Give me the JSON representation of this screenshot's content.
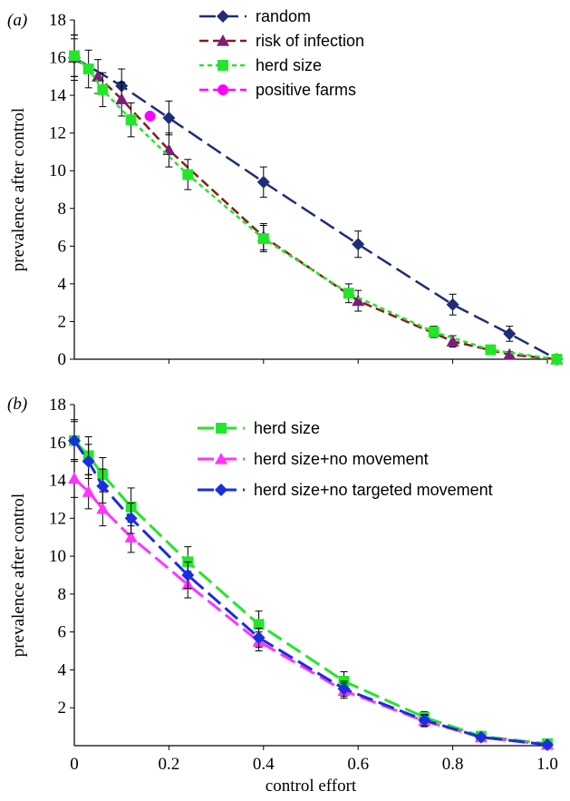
{
  "chart_data": [
    {
      "type": "line",
      "panel_label": "(a)",
      "ylabel": "prevalence after control",
      "xlabel": "",
      "xlim": [
        0,
        1.0
      ],
      "ylim": [
        0,
        18
      ],
      "yticks": [
        0,
        2,
        4,
        6,
        8,
        10,
        12,
        14,
        16,
        18
      ],
      "xticks": [],
      "legend_position": "top-center",
      "series": [
        {
          "name": "random",
          "color": "#1f2d78",
          "marker": "diamond",
          "dash": "long",
          "x": [
            0,
            0.1,
            0.2,
            0.4,
            0.6,
            0.8,
            0.92,
            1.02
          ],
          "y": [
            16,
            14.5,
            12.8,
            9.4,
            6.1,
            2.9,
            1.35,
            0
          ],
          "err": [
            1.2,
            0.9,
            0.9,
            0.8,
            0.7,
            0.55,
            0.4,
            0
          ]
        },
        {
          "name": "risk of infection",
          "color": "#8a1a1a",
          "marker_color": "#7b1d7b",
          "marker": "triangle",
          "dash": "medium",
          "x": [
            0,
            0.05,
            0.1,
            0.2,
            0.4,
            0.6,
            0.8,
            0.92,
            1.02
          ],
          "y": [
            16,
            15.0,
            13.8,
            11.1,
            6.5,
            3.1,
            0.95,
            0.25,
            0
          ],
          "err": [
            1.0,
            0.9,
            0.9,
            0.9,
            0.7,
            0.55,
            0.3,
            0.15,
            0
          ]
        },
        {
          "name": "herd size",
          "color": "#22e62a",
          "marker": "square",
          "dash": "short",
          "x": [
            0,
            0.03,
            0.06,
            0.12,
            0.24,
            0.4,
            0.58,
            0.76,
            0.88,
            1.02
          ],
          "y": [
            16.1,
            15.4,
            14.3,
            12.7,
            9.8,
            6.4,
            3.5,
            1.45,
            0.5,
            0
          ],
          "err": [
            1.1,
            1.0,
            0.9,
            0.9,
            0.8,
            0.7,
            0.5,
            0.3,
            0.15,
            0
          ]
        },
        {
          "name": "positive farms",
          "color": "#ff00ff",
          "marker": "circle",
          "dash": "medium",
          "x": [
            0.16
          ],
          "y": [
            12.9
          ],
          "err": [
            0
          ]
        }
      ]
    },
    {
      "type": "line",
      "panel_label": "(b)",
      "ylabel": "prevalence after control",
      "xlabel": "control effort",
      "xlim": [
        0,
        1.0
      ],
      "ylim": [
        0,
        18
      ],
      "yticks": [
        2,
        4,
        6,
        8,
        10,
        12,
        14,
        16,
        18
      ],
      "xticks": [
        0,
        0.2,
        0.4,
        0.6,
        0.8,
        1.0
      ],
      "xtick_labels": [
        "0",
        "0.2",
        "0.4",
        "0.6",
        "0.8",
        "1.0"
      ],
      "legend_position": "top-right",
      "series": [
        {
          "name": "herd size",
          "color": "#22e62a",
          "marker": "square",
          "dash": "long",
          "x": [
            0,
            0.03,
            0.06,
            0.12,
            0.24,
            0.39,
            0.57,
            0.74,
            0.86,
            1.0
          ],
          "y": [
            16.1,
            15.3,
            14.3,
            12.6,
            9.7,
            6.4,
            3.4,
            1.5,
            0.5,
            0.1
          ],
          "err": [
            1.1,
            1.0,
            0.9,
            1.0,
            0.8,
            0.7,
            0.5,
            0.3,
            0.15,
            0.05
          ]
        },
        {
          "name": "herd size+no movement",
          "color": "#ff33ff",
          "marker": "triangle",
          "dash": "long",
          "x": [
            0,
            0.03,
            0.06,
            0.12,
            0.24,
            0.39,
            0.57,
            0.74,
            0.86,
            1.0
          ],
          "y": [
            14.1,
            13.4,
            12.5,
            11.0,
            8.5,
            5.5,
            2.9,
            1.3,
            0.45,
            0.05
          ],
          "err": [
            1.0,
            0.9,
            0.9,
            0.8,
            0.7,
            0.5,
            0.4,
            0.3,
            0.1,
            0.05
          ]
        },
        {
          "name": "herd size+no targeted movement",
          "color": "#1a2ee0",
          "marker": "diamond",
          "dash": "long",
          "x": [
            0,
            0.03,
            0.06,
            0.12,
            0.24,
            0.39,
            0.57,
            0.74,
            0.86,
            1.0
          ],
          "y": [
            16.1,
            15.0,
            13.7,
            12.0,
            9.0,
            5.7,
            3.0,
            1.35,
            0.45,
            0.05
          ],
          "err": [
            1.0,
            0.9,
            0.9,
            0.8,
            0.7,
            0.5,
            0.4,
            0.3,
            0.1,
            0.05
          ]
        }
      ]
    }
  ]
}
